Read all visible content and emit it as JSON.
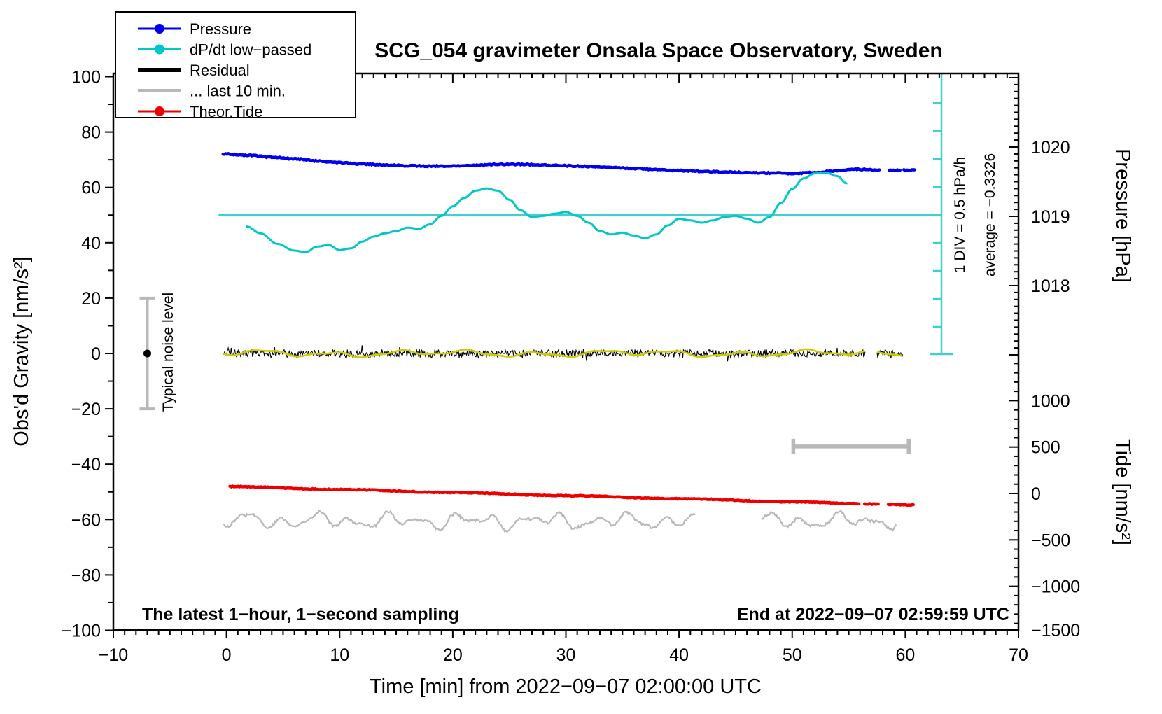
{
  "title": "SCG_054 gravimeter Onsala Space Observatory, Sweden",
  "annotations": {
    "noise_label": "Typical noise level",
    "div_label": "1 DIV = 0.5 hPa/h",
    "average_label": "average = −0.3326",
    "sampling_label": "The latest 1−hour, 1−second sampling",
    "end_label": "End at 2022−09−07 02:59:59 UTC"
  },
  "legend": {
    "items": [
      {
        "label": "Pressure",
        "color": "#0000ee",
        "dot": true,
        "width": 3
      },
      {
        "label": "dP/dt low−passed",
        "color": "#00c8c8",
        "dot": true,
        "width": 3
      },
      {
        "label": "Residual",
        "color": "#000000",
        "dot": false,
        "width": 6
      },
      {
        "label": "... last 10 min.",
        "color": "#b8b8b8",
        "dot": false,
        "width": 5
      },
      {
        "label": "Theor.Tide",
        "color": "#ee0000",
        "dot": true,
        "width": 3
      }
    ]
  },
  "colors": {
    "pressure": "#0000ee",
    "dpdt": "#00c8c8",
    "dpdt_scalebar": "#40d0d0",
    "residual": "#000000",
    "residual_lowpass": "#cccc00",
    "last10": "#b8b8b8",
    "tide": "#ee0000",
    "frame": "#000000"
  },
  "chart_data": {
    "type": "line",
    "title": "SCG_054 gravimeter Onsala Space Observatory, Sweden",
    "x_axis": {
      "label": "Time [min] from 2022−09−07 02:00:00 UTC",
      "range": [
        -10,
        70
      ],
      "major_ticks": [
        -10,
        0,
        10,
        20,
        30,
        40,
        50,
        60,
        70
      ],
      "minor_step": 1
    },
    "y_axis_gravity": {
      "label": "Obs'd Gravity [nm/s²]",
      "range": [
        -100,
        100
      ],
      "major_ticks": [
        -100,
        -80,
        -60,
        -40,
        -20,
        0,
        20,
        40,
        60,
        80,
        100
      ],
      "minor_step": 10
    },
    "y_axis_pressure": {
      "label": "Pressure [hPa]",
      "labeled_ticks": [
        1018,
        1019,
        1020
      ],
      "unlabeled_major_ticks": [
        1017,
        1021
      ],
      "minor_step": 0.1,
      "visible_range": [
        1017.0,
        1021.1
      ]
    },
    "y_axis_tide": {
      "label": "Tide [nm/s²]",
      "labeled_ticks": [
        1000,
        500,
        0,
        -500,
        -1000,
        -1500
      ],
      "minor_step": 100,
      "visible_range": [
        -1500,
        1500
      ]
    },
    "grid": false,
    "legend_position": "top-left",
    "series": [
      {
        "id": "pressure",
        "name": "Pressure",
        "unit": "hPa",
        "axis": "pressure",
        "style": "thick-dotted-line",
        "gaps": [
          [
            57.75,
            58.6
          ],
          [
            59.55,
            59.8
          ]
        ],
        "points": [
          [
            -0.3,
            1019.9
          ],
          [
            2,
            1019.88
          ],
          [
            4,
            1019.855
          ],
          [
            6,
            1019.83
          ],
          [
            8,
            1019.8
          ],
          [
            10,
            1019.775
          ],
          [
            12,
            1019.755
          ],
          [
            14,
            1019.74
          ],
          [
            16,
            1019.73
          ],
          [
            18,
            1019.725
          ],
          [
            20,
            1019.725
          ],
          [
            22,
            1019.735
          ],
          [
            24,
            1019.75
          ],
          [
            26,
            1019.75
          ],
          [
            28,
            1019.74
          ],
          [
            30,
            1019.73
          ],
          [
            32,
            1019.72
          ],
          [
            34,
            1019.705
          ],
          [
            36,
            1019.69
          ],
          [
            38,
            1019.675
          ],
          [
            40,
            1019.66
          ],
          [
            42,
            1019.65
          ],
          [
            44,
            1019.64
          ],
          [
            46,
            1019.63
          ],
          [
            48,
            1019.625
          ],
          [
            50,
            1019.62
          ],
          [
            52,
            1019.63
          ],
          [
            54,
            1019.66
          ],
          [
            55.5,
            1019.68
          ],
          [
            56.5,
            1019.675
          ],
          [
            57.7,
            1019.67
          ],
          [
            58.6,
            1019.67
          ],
          [
            60.8,
            1019.665
          ]
        ]
      },
      {
        "id": "dpdt",
        "name": "dP/dt low−passed",
        "unit": "hPa/h",
        "axis": "dpdt",
        "style": "smooth-line",
        "average": -0.3326,
        "div_value": 0.5,
        "gaps": [],
        "points": [
          [
            1.8,
            -0.54
          ],
          [
            3,
            -0.66
          ],
          [
            4.5,
            -0.85
          ],
          [
            6,
            -0.97
          ],
          [
            7,
            -1.0
          ],
          [
            8,
            -0.9
          ],
          [
            9,
            -0.87
          ],
          [
            10,
            -0.96
          ],
          [
            11,
            -0.93
          ],
          [
            12,
            -0.81
          ],
          [
            13,
            -0.72
          ],
          [
            14,
            -0.66
          ],
          [
            15,
            -0.62
          ],
          [
            16,
            -0.56
          ],
          [
            17,
            -0.58
          ],
          [
            18,
            -0.5
          ],
          [
            19,
            -0.35
          ],
          [
            20,
            -0.18
          ],
          [
            21,
            -0.03
          ],
          [
            22,
            0.1
          ],
          [
            23,
            0.14
          ],
          [
            24,
            0.1
          ],
          [
            25,
            -0.06
          ],
          [
            26,
            -0.25
          ],
          [
            27,
            -0.37
          ],
          [
            28,
            -0.35
          ],
          [
            29,
            -0.31
          ],
          [
            30,
            -0.28
          ],
          [
            31,
            -0.35
          ],
          [
            32,
            -0.47
          ],
          [
            33,
            -0.62
          ],
          [
            34,
            -0.68
          ],
          [
            35,
            -0.65
          ],
          [
            36,
            -0.7
          ],
          [
            37,
            -0.75
          ],
          [
            38,
            -0.68
          ],
          [
            39,
            -0.52
          ],
          [
            40,
            -0.4
          ],
          [
            41,
            -0.43
          ],
          [
            42,
            -0.47
          ],
          [
            43,
            -0.43
          ],
          [
            44,
            -0.37
          ],
          [
            45,
            -0.35
          ],
          [
            46,
            -0.4
          ],
          [
            47,
            -0.47
          ],
          [
            48,
            -0.37
          ],
          [
            49,
            -0.12
          ],
          [
            50,
            0.13
          ],
          [
            51,
            0.32
          ],
          [
            52,
            0.41
          ],
          [
            53,
            0.42
          ],
          [
            54,
            0.36
          ],
          [
            54.8,
            0.23
          ]
        ]
      },
      {
        "id": "residual",
        "name": "Residual",
        "unit": "nm/s²",
        "axis": "gravity",
        "style": "noisy-line",
        "baseline": 0,
        "noise_amplitude": 1.5,
        "segments": [
          [
            -0.3,
            56.5
          ],
          [
            57.5,
            59.8
          ]
        ]
      },
      {
        "id": "residual_lowpass",
        "name": "Residual low−passed (yellow overlay, not in legend)",
        "unit": "nm/s²",
        "axis": "gravity",
        "style": "smooth-overlay",
        "baseline": 0,
        "amplitude": 0.9,
        "segments": [
          [
            -0.3,
            56.5
          ],
          [
            57.5,
            59.8
          ]
        ]
      },
      {
        "id": "last10",
        "name": "... last 10 min.",
        "unit": "nm/s²",
        "axis": "gravity",
        "style": "noisy-line",
        "note": "residual of last 10 minutes stretched across full hour width",
        "baseline": -60.5,
        "noise_amplitude": 2.8,
        "segments": [
          [
            -0.3,
            41.5
          ],
          [
            47.3,
            59.3
          ]
        ]
      },
      {
        "id": "tide",
        "name": "Theor.Tide",
        "unit": "nm/s²",
        "axis": "tide",
        "style": "thick-dotted-line",
        "gaps": [
          [
            55.95,
            56.38
          ],
          [
            57.65,
            58.45
          ]
        ],
        "points": [
          [
            0.3,
            75
          ],
          [
            10,
            43
          ],
          [
            20,
            10
          ],
          [
            30,
            -23
          ],
          [
            40,
            -57
          ],
          [
            50,
            -90
          ],
          [
            55.9,
            -109
          ],
          [
            56.4,
            -111
          ],
          [
            57.6,
            -115
          ],
          [
            58.5,
            -118
          ],
          [
            60.7,
            -125
          ]
        ]
      }
    ],
    "reference_marks": {
      "dpdt_average_line": {
        "value_hpa_per_h": -0.3326,
        "gravity_axis_level": 50,
        "t_range": [
          -0.7,
          63.2
        ]
      },
      "dpdt_scale_bar": {
        "t_position": 63.2,
        "divisions": 10,
        "div_label": "1 DIV = 0.5 hPa/h"
      },
      "noise_error_bar": {
        "t_position": -7,
        "gravity_range": [
          -20,
          20
        ],
        "center_dot_gravity": 0
      },
      "last10_span_bar": {
        "t_range": [
          50.1,
          60.3
        ],
        "gravity_level": -33.6
      }
    }
  }
}
